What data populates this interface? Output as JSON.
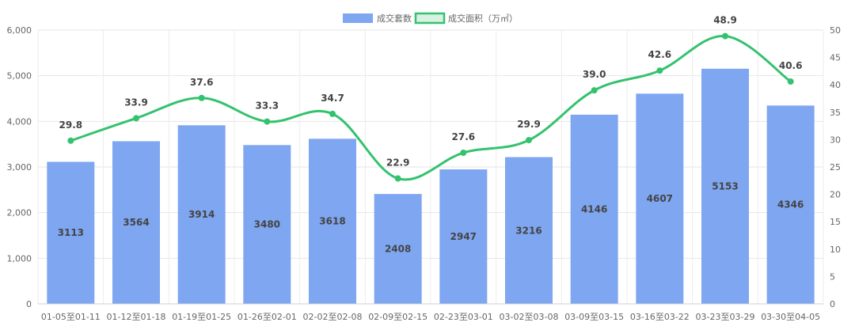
{
  "chart_data": {
    "type": "bar",
    "categories": [
      "01-05至01-11",
      "01-12至01-18",
      "01-19至01-25",
      "01-26至02-01",
      "02-02至02-08",
      "02-09至02-15",
      "02-23至03-01",
      "03-02至03-08",
      "03-09至03-15",
      "03-16至03-22",
      "03-23至03-29",
      "03-30至04-05"
    ],
    "series": [
      {
        "name": "成交套数",
        "type": "bar",
        "axis": "left",
        "color": "#7fa6f0",
        "values": [
          3113,
          3564,
          3914,
          3480,
          3618,
          2408,
          2947,
          3216,
          4146,
          4607,
          5153,
          4346
        ]
      },
      {
        "name": "成交面积（万㎡）",
        "type": "line",
        "axis": "right",
        "color": "#34c26f",
        "values": [
          29.8,
          33.9,
          37.6,
          33.3,
          34.7,
          22.9,
          27.6,
          29.9,
          39.0,
          42.6,
          48.9,
          40.6
        ],
        "labels": [
          "29.8",
          "33.9",
          "37.6",
          "33.3",
          "34.7",
          "22.9",
          "27.6",
          "29.9",
          "39.0",
          "42.6",
          "48.9",
          "40.6"
        ]
      }
    ],
    "y_left": {
      "min": 0,
      "max": 6000,
      "step": 1000
    },
    "y_right": {
      "min": 0,
      "max": 50,
      "step": 5
    },
    "legend_position": "top-center",
    "grid": true
  }
}
